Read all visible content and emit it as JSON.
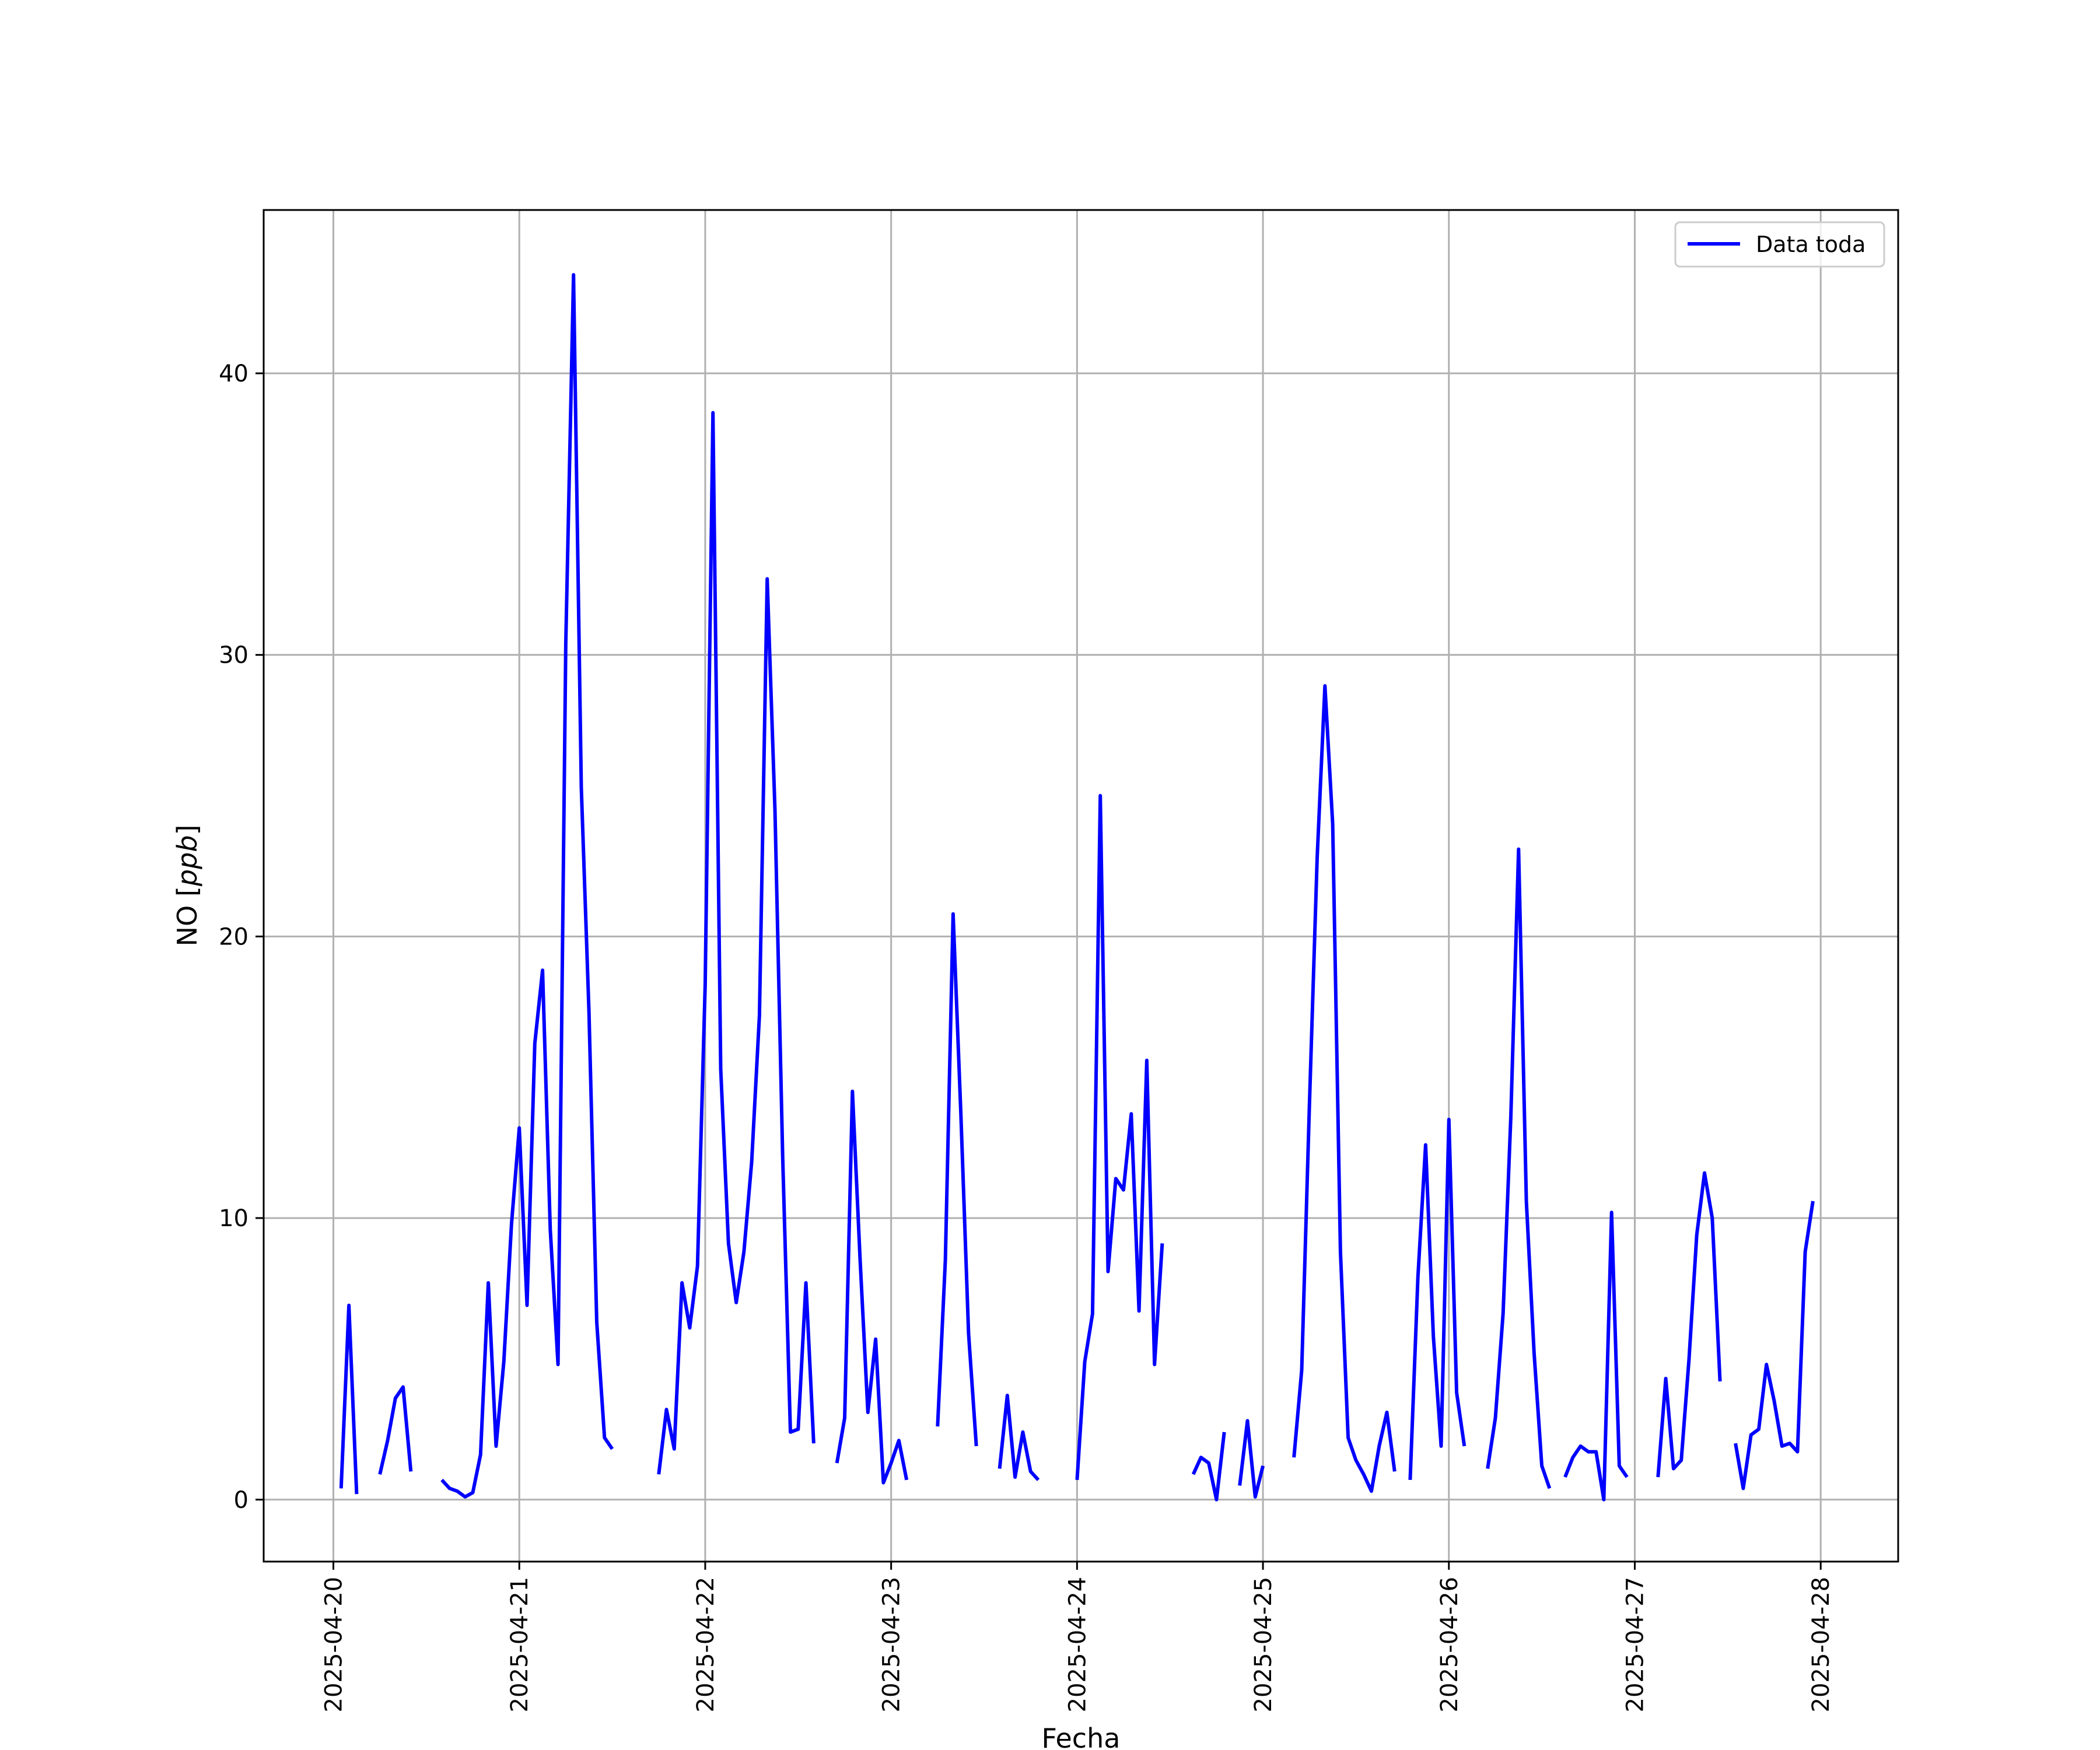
{
  "chart_data": {
    "type": "line",
    "title": "",
    "xlabel": "Fecha",
    "ylabel": "NO [ppb]",
    "ylabel_parts": {
      "prefix": "NO [",
      "unit": "ppb",
      "suffix": "]"
    },
    "xlim": [
      "2025-04-19 15:00",
      "2025-04-28 10:00"
    ],
    "ylim": [
      -2.2,
      45.8
    ],
    "grid": true,
    "legend": {
      "placement": "top-right"
    },
    "x_ticks": [
      "2025-04-20",
      "2025-04-21",
      "2025-04-22",
      "2025-04-23",
      "2025-04-24",
      "2025-04-25",
      "2025-04-26",
      "2025-04-27",
      "2025-04-28"
    ],
    "y_ticks": [
      0,
      10,
      20,
      30,
      40
    ],
    "series": [
      {
        "name": "Data toda",
        "color": "#0000ff",
        "segments": [
          [
            [
              "2025-04-20 01:00",
              0.4
            ],
            [
              "2025-04-20 02:00",
              6.9
            ],
            [
              "2025-04-20 03:00",
              0.2
            ]
          ],
          [
            [
              "2025-04-20 06:00",
              0.9
            ],
            [
              "2025-04-20 07:00",
              2.1
            ],
            [
              "2025-04-20 08:00",
              3.6
            ],
            [
              "2025-04-20 09:00",
              4.0
            ],
            [
              "2025-04-20 10:00",
              1.0
            ]
          ],
          [
            [
              "2025-04-20 14:00",
              0.7
            ],
            [
              "2025-04-20 15:00",
              0.4
            ],
            [
              "2025-04-20 16:00",
              0.3
            ],
            [
              "2025-04-20 17:00",
              0.1
            ],
            [
              "2025-04-20 18:00",
              0.25
            ],
            [
              "2025-04-20 19:00",
              1.6
            ],
            [
              "2025-04-20 20:00",
              7.7
            ],
            [
              "2025-04-20 21:00",
              1.9
            ],
            [
              "2025-04-20 22:00",
              4.9
            ],
            [
              "2025-04-20 23:00",
              9.8
            ],
            [
              "2025-04-21 00:00",
              13.2
            ],
            [
              "2025-04-21 01:00",
              6.9
            ],
            [
              "2025-04-21 02:00",
              16.2
            ],
            [
              "2025-04-21 03:00",
              18.8
            ],
            [
              "2025-04-21 04:00",
              9.6
            ],
            [
              "2025-04-21 05:00",
              4.8
            ],
            [
              "2025-04-21 06:00",
              30.4
            ],
            [
              "2025-04-21 07:00",
              43.5
            ],
            [
              "2025-04-21 08:00",
              25.3
            ],
            [
              "2025-04-21 09:00",
              17.3
            ],
            [
              "2025-04-21 10:00",
              6.3
            ],
            [
              "2025-04-21 11:00",
              2.2
            ],
            [
              "2025-04-21 12:00",
              1.8
            ]
          ],
          [
            [
              "2025-04-21 18:00",
              0.9
            ],
            [
              "2025-04-21 19:00",
              3.2
            ],
            [
              "2025-04-21 20:00",
              1.8
            ],
            [
              "2025-04-21 21:00",
              7.7
            ],
            [
              "2025-04-21 22:00",
              6.1
            ],
            [
              "2025-04-21 23:00",
              8.3
            ],
            [
              "2025-04-22 00:00",
              18.3
            ],
            [
              "2025-04-22 01:00",
              38.6
            ],
            [
              "2025-04-22 02:00",
              15.3
            ],
            [
              "2025-04-22 03:00",
              9.1
            ],
            [
              "2025-04-22 04:00",
              7.0
            ],
            [
              "2025-04-22 05:00",
              8.8
            ],
            [
              "2025-04-22 06:00",
              12.0
            ],
            [
              "2025-04-22 07:00",
              17.2
            ],
            [
              "2025-04-22 08:00",
              32.7
            ],
            [
              "2025-04-22 09:00",
              24.5
            ],
            [
              "2025-04-22 10:00",
              12.2
            ],
            [
              "2025-04-22 11:00",
              2.4
            ],
            [
              "2025-04-22 12:00",
              2.5
            ],
            [
              "2025-04-22 13:00",
              7.7
            ],
            [
              "2025-04-22 14:00",
              2.0
            ]
          ],
          [
            [
              "2025-04-22 17:00",
              1.3
            ],
            [
              "2025-04-22 18:00",
              2.9
            ],
            [
              "2025-04-22 19:00",
              14.5
            ],
            [
              "2025-04-22 20:00",
              8.5
            ],
            [
              "2025-04-22 21:00",
              3.1
            ],
            [
              "2025-04-22 22:00",
              5.7
            ],
            [
              "2025-04-22 23:00",
              0.6
            ],
            [
              "2025-04-23 00:00",
              1.3
            ],
            [
              "2025-04-23 01:00",
              2.1
            ],
            [
              "2025-04-23 02:00",
              0.7
            ]
          ],
          [
            [
              "2025-04-23 06:00",
              2.6
            ],
            [
              "2025-04-23 07:00",
              8.5
            ],
            [
              "2025-04-23 08:00",
              20.8
            ],
            [
              "2025-04-23 09:00",
              13.7
            ],
            [
              "2025-04-23 10:00",
              5.9
            ],
            [
              "2025-04-23 11:00",
              1.9
            ]
          ],
          [
            [
              "2025-04-23 14:00",
              1.1
            ],
            [
              "2025-04-23 15:00",
              3.7
            ],
            [
              "2025-04-23 16:00",
              0.8
            ],
            [
              "2025-04-23 17:00",
              2.4
            ],
            [
              "2025-04-23 18:00",
              1.0
            ],
            [
              "2025-04-23 19:00",
              0.7
            ]
          ],
          [
            [
              "2025-04-24 00:00",
              0.7
            ],
            [
              "2025-04-24 01:00",
              4.9
            ],
            [
              "2025-04-24 02:00",
              6.6
            ],
            [
              "2025-04-24 03:00",
              25.0
            ],
            [
              "2025-04-24 04:00",
              8.1
            ],
            [
              "2025-04-24 05:00",
              11.4
            ],
            [
              "2025-04-24 06:00",
              11.0
            ],
            [
              "2025-04-24 07:00",
              13.7
            ],
            [
              "2025-04-24 08:00",
              6.7
            ],
            [
              "2025-04-24 09:00",
              15.6
            ],
            [
              "2025-04-24 10:00",
              4.8
            ],
            [
              "2025-04-24 11:00",
              9.1
            ]
          ],
          [
            [
              "2025-04-24 15:00",
              0.9
            ],
            [
              "2025-04-24 16:00",
              1.5
            ],
            [
              "2025-04-24 17:00",
              1.3
            ],
            [
              "2025-04-24 18:00",
              0.0
            ],
            [
              "2025-04-24 19:00",
              2.4
            ]
          ],
          [
            [
              "2025-04-24 21:00",
              0.5
            ],
            [
              "2025-04-24 22:00",
              2.8
            ],
            [
              "2025-04-24 23:00",
              0.1
            ],
            [
              "2025-04-25 00:00",
              1.2
            ]
          ],
          [
            [
              "2025-04-25 04:00",
              1.5
            ],
            [
              "2025-04-25 05:00",
              4.6
            ],
            [
              "2025-04-25 06:00",
              14.0
            ],
            [
              "2025-04-25 07:00",
              22.8
            ],
            [
              "2025-04-25 08:00",
              28.9
            ],
            [
              "2025-04-25 09:00",
              24.0
            ],
            [
              "2025-04-25 10:00",
              8.8
            ],
            [
              "2025-04-25 11:00",
              2.2
            ],
            [
              "2025-04-25 12:00",
              1.4
            ],
            [
              "2025-04-25 13:00",
              0.9
            ],
            [
              "2025-04-25 14:00",
              0.3
            ],
            [
              "2025-04-25 15:00",
              1.9
            ],
            [
              "2025-04-25 16:00",
              3.1
            ],
            [
              "2025-04-25 17:00",
              1.0
            ]
          ],
          [
            [
              "2025-04-25 19:00",
              0.7
            ],
            [
              "2025-04-25 20:00",
              7.9
            ],
            [
              "2025-04-25 21:00",
              12.6
            ],
            [
              "2025-04-25 22:00",
              5.8
            ],
            [
              "2025-04-25 23:00",
              1.9
            ],
            [
              "2025-04-26 00:00",
              13.5
            ],
            [
              "2025-04-26 01:00",
              3.8
            ],
            [
              "2025-04-26 02:00",
              1.9
            ]
          ],
          [
            [
              "2025-04-26 05:00",
              1.1
            ],
            [
              "2025-04-26 06:00",
              2.9
            ],
            [
              "2025-04-26 07:00",
              6.6
            ],
            [
              "2025-04-26 08:00",
              13.6
            ],
            [
              "2025-04-26 09:00",
              23.1
            ],
            [
              "2025-04-26 10:00",
              10.6
            ],
            [
              "2025-04-26 11:00",
              5.2
            ],
            [
              "2025-04-26 12:00",
              1.2
            ],
            [
              "2025-04-26 13:00",
              0.4
            ]
          ],
          [
            [
              "2025-04-26 15:00",
              0.8
            ],
            [
              "2025-04-26 16:00",
              1.5
            ],
            [
              "2025-04-26 17:00",
              1.9
            ],
            [
              "2025-04-26 18:00",
              1.7
            ],
            [
              "2025-04-26 19:00",
              1.7
            ],
            [
              "2025-04-26 20:00",
              0.0
            ],
            [
              "2025-04-26 21:00",
              10.2
            ],
            [
              "2025-04-26 22:00",
              1.2
            ],
            [
              "2025-04-26 23:00",
              0.8
            ]
          ],
          [
            [
              "2025-04-27 03:00",
              0.8
            ],
            [
              "2025-04-27 04:00",
              4.3
            ],
            [
              "2025-04-27 05:00",
              1.1
            ],
            [
              "2025-04-27 06:00",
              1.4
            ],
            [
              "2025-04-27 07:00",
              5.0
            ],
            [
              "2025-04-27 08:00",
              9.4
            ],
            [
              "2025-04-27 09:00",
              11.6
            ],
            [
              "2025-04-27 10:00",
              10.0
            ],
            [
              "2025-04-27 11:00",
              4.2
            ]
          ],
          [
            [
              "2025-04-27 13:00",
              2.0
            ],
            [
              "2025-04-27 14:00",
              0.4
            ],
            [
              "2025-04-27 15:00",
              2.3
            ],
            [
              "2025-04-27 16:00",
              2.5
            ],
            [
              "2025-04-27 17:00",
              4.8
            ],
            [
              "2025-04-27 18:00",
              3.5
            ],
            [
              "2025-04-27 19:00",
              1.9
            ],
            [
              "2025-04-27 20:00",
              2.0
            ],
            [
              "2025-04-27 21:00",
              1.7
            ],
            [
              "2025-04-27 22:00",
              8.8
            ],
            [
              "2025-04-27 23:00",
              10.6
            ]
          ]
        ]
      }
    ]
  }
}
